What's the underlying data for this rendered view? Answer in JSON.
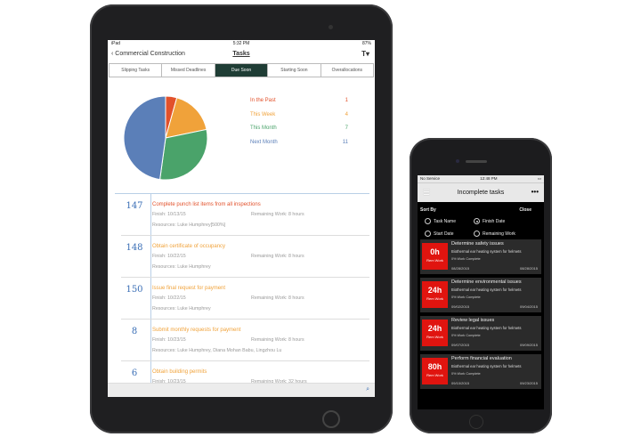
{
  "ipad": {
    "status": {
      "left": "iPad",
      "time": "5:32 PM",
      "battery": "87%"
    },
    "nav": {
      "back_label": "Commercial Construction",
      "title": "Tasks",
      "filter_icon": "filter-icon"
    },
    "tabs": [
      {
        "label": "Slipping Tasks",
        "active": false
      },
      {
        "label": "Missed Deadlines",
        "active": false
      },
      {
        "label": "Due Soon",
        "active": true
      },
      {
        "label": "Starting Soon",
        "active": false
      },
      {
        "label": "Overallocations",
        "active": false
      }
    ],
    "tasks": [
      {
        "id": "147",
        "title": "Complete punch list items from all inspections",
        "color": "#e2512b",
        "finish": "Finish: 10/13/15",
        "remaining": "Remaining Work: 8 hours",
        "resources": "Resources: Luke Humphrey[500%]"
      },
      {
        "id": "148",
        "title": "Obtain certificate of occupancy",
        "color": "#f0a23a",
        "finish": "Finish: 10/22/15",
        "remaining": "Remaining Work: 8 hours",
        "resources": "Resources: Luke Humphrey"
      },
      {
        "id": "150",
        "title": "Issue final request for payment",
        "color": "#f0a23a",
        "finish": "Finish: 10/22/15",
        "remaining": "Remaining Work: 8 hours",
        "resources": "Resources: Luke Humphrey"
      },
      {
        "id": "8",
        "title": "Submit monthly requests for payment",
        "color": "#f0a23a",
        "finish": "Finish: 10/23/15",
        "remaining": "Remaining Work: 8 hours",
        "resources": "Resources: Luke Humphrey, Diana Mohan Babu, Lingzhou Lu"
      },
      {
        "id": "6",
        "title": "Obtain building permits",
        "color": "#f0a23a",
        "finish": "Finish: 10/23/15",
        "remaining": "Remaining Work: 32 hours",
        "resources": ""
      }
    ]
  },
  "chart_data": {
    "type": "pie",
    "categories": [
      "In the Past",
      "This Week",
      "This Month",
      "Next Month"
    ],
    "values": [
      1,
      4,
      7,
      11
    ],
    "colors": [
      "#e2512b",
      "#f0a23a",
      "#4aa36a",
      "#5b7fb8"
    ],
    "legend": "right"
  },
  "phone": {
    "status": {
      "carrier": "No Service",
      "time": "12:48 PM"
    },
    "title": "Incomplete tasks",
    "sort_by": "Sort By",
    "close": "Close",
    "options": [
      {
        "label": "Task Name",
        "selected": false
      },
      {
        "label": "Finish Date",
        "selected": true
      },
      {
        "label": "Start Date",
        "selected": false
      },
      {
        "label": "Remaining Work",
        "selected": false
      }
    ],
    "cards": [
      {
        "hours": "0h",
        "rem": "Rem Work",
        "title": "Determine safety issues",
        "project": "Biothermal ear heating system for helmets",
        "complete": "0% Work Complete",
        "start": "08/28/2015",
        "end": "08/28/2015"
      },
      {
        "hours": "24h",
        "rem": "Rem Work",
        "title": "Determine environmental issues",
        "project": "Biothermal ear heating system for helmets",
        "complete": "0% Work Complete",
        "start": "09/02/2015",
        "end": "09/04/2015"
      },
      {
        "hours": "24h",
        "rem": "Rem Work",
        "title": "Review legal issues",
        "project": "Biothermal ear heating system for helmets",
        "complete": "0% Work Complete",
        "start": "09/07/2015",
        "end": "09/09/2015"
      },
      {
        "hours": "80h",
        "rem": "Rem Work",
        "title": "Perform financial evaluation",
        "project": "Biothermal ear heating system for helmets",
        "complete": "0% Work Complete",
        "start": "09/10/2015",
        "end": "09/23/2015"
      }
    ]
  }
}
